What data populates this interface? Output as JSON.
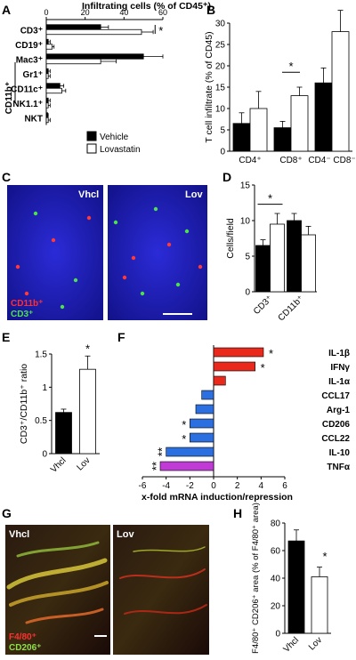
{
  "panel_letters": [
    "A",
    "B",
    "C",
    "D",
    "E",
    "F",
    "G",
    "H"
  ],
  "colors": {
    "vehicle": "#000000",
    "lovastatin": "#ffffff",
    "f_up": "#e8291c",
    "f_down": "#2b6fe0",
    "f_tnf": "#c03ad6"
  },
  "chart_data": [
    {
      "panel": "A",
      "type": "bar",
      "orientation": "horizontal",
      "title": "Infiltrating cells (% of CD45⁺)",
      "categories": [
        "CD3⁺",
        "CD19⁺",
        "Mac3⁺",
        "Gr1⁺",
        "CD11c⁺",
        "NK1.1⁺",
        "NKT"
      ],
      "group_label": "CD11b⁺",
      "xlim": [
        0,
        60
      ],
      "xticks": [
        "0",
        "20",
        "40",
        "60"
      ],
      "series": [
        {
          "name": "Vehicle",
          "values": [
            28,
            1,
            50,
            1,
            7,
            1,
            0.5
          ],
          "err": [
            4,
            1,
            10,
            1,
            2,
            1,
            0.5
          ]
        },
        {
          "name": "Lovastatin",
          "values": [
            49,
            3,
            28,
            1,
            8,
            1,
            1
          ],
          "err": [
            6,
            1,
            8,
            1,
            2,
            1,
            1
          ]
        }
      ],
      "annotations": [
        "*"
      ]
    },
    {
      "panel": "B",
      "type": "bar",
      "ylabel": "T cell infiltrate (% of CD45)",
      "categories": [
        "CD4⁺",
        "CD8⁺",
        "CD4⁻ CD8⁻"
      ],
      "ylim": [
        0,
        30
      ],
      "yticks": [
        "0",
        "5",
        "10",
        "15",
        "20",
        "25",
        "30"
      ],
      "series": [
        {
          "name": "Vehicle",
          "values": [
            6.5,
            5.5,
            16
          ],
          "err": [
            2.5,
            1.5,
            3.5
          ]
        },
        {
          "name": "Lovastatin",
          "values": [
            10,
            13,
            28
          ],
          "err": [
            4,
            2,
            5
          ]
        }
      ],
      "annotations": [
        "*"
      ]
    },
    {
      "panel": "D",
      "type": "bar",
      "ylabel": "Cells/field",
      "categories": [
        "CD3⁺",
        "CD11b⁺"
      ],
      "ylim": [
        0,
        15
      ],
      "yticks": [
        "0",
        "5",
        "10",
        "15"
      ],
      "series": [
        {
          "name": "Vehicle",
          "values": [
            6.5,
            10
          ],
          "err": [
            0.8,
            1
          ]
        },
        {
          "name": "Lovastatin",
          "values": [
            9.5,
            8
          ],
          "err": [
            1.5,
            1.2
          ]
        }
      ],
      "annotations": [
        "*"
      ]
    },
    {
      "panel": "E",
      "type": "bar",
      "ylabel": "CD3⁺/CD11b⁺ ratio",
      "categories": [
        "Vhcl",
        "Lov"
      ],
      "ylim": [
        0,
        1.5
      ],
      "yticks": [
        "0",
        "0.5",
        "1",
        "1.5"
      ],
      "values": [
        0.62,
        1.27
      ],
      "err": [
        0.05,
        0.2
      ],
      "annotations": [
        "*"
      ]
    },
    {
      "panel": "F",
      "type": "bar",
      "orientation": "horizontal",
      "xlabel": "x-fold mRNA induction/repression",
      "categories": [
        "IL-1β",
        "IFNγ",
        "IL-1α",
        "CCL17",
        "Arg-1",
        "CD206",
        "CCL22",
        "IL-10",
        "TNFα"
      ],
      "values": [
        4.2,
        3.5,
        1.0,
        -1.0,
        -1.5,
        -2.0,
        -2.0,
        -4.0,
        -4.5
      ],
      "significance": [
        "*",
        "*",
        "",
        "",
        "",
        "*",
        "*",
        "**",
        "**"
      ],
      "xlim": [
        -6,
        6
      ],
      "xticks": [
        "-6",
        "-4",
        "-2",
        "0",
        "2",
        "4",
        "6"
      ]
    },
    {
      "panel": "H",
      "type": "bar",
      "ylabel": "F4/80⁺ CD206⁺ area (% of F4/80⁺ area)",
      "categories": [
        "Vhcl",
        "Lov"
      ],
      "ylim": [
        0,
        80
      ],
      "yticks": [
        "0",
        "20",
        "40",
        "60",
        "80"
      ],
      "values": [
        67,
        41
      ],
      "err": [
        8,
        7
      ],
      "annotations": [
        "*"
      ]
    }
  ],
  "image_panel_C": {
    "left_label": "Vhcl",
    "right_label": "Lov",
    "legend": [
      "CD11b⁺",
      "CD3⁺"
    ]
  },
  "image_panel_G": {
    "left_label": "Vhcl",
    "right_label": "Lov",
    "legend": [
      "F4/80⁺",
      "CD206⁺"
    ]
  }
}
